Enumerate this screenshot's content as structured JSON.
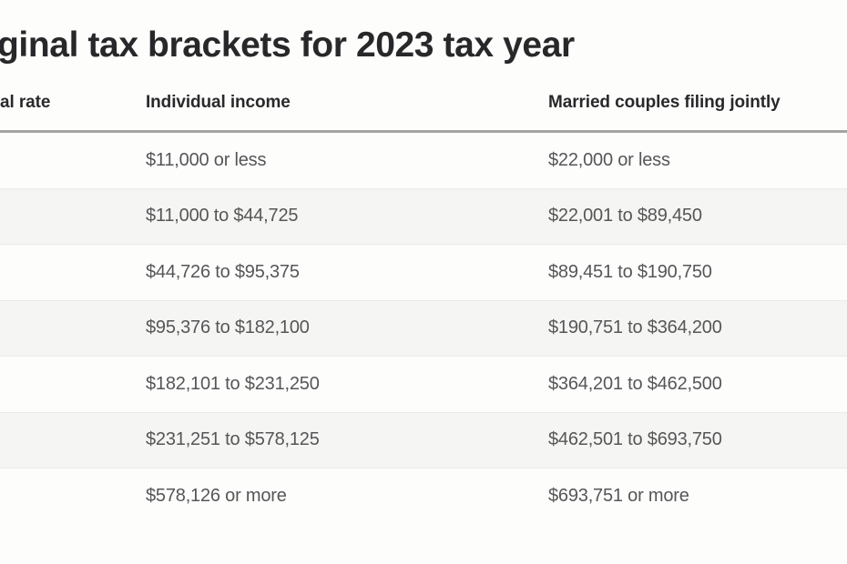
{
  "title": "ginal tax brackets for 2023 tax year",
  "table": {
    "columns": [
      {
        "label": "al rate"
      },
      {
        "label": "Individual income"
      },
      {
        "label": "Married couples filing jointly"
      }
    ],
    "rows": [
      {
        "rate": "",
        "individual": "$11,000 or less",
        "married": "$22,000 or less"
      },
      {
        "rate": "",
        "individual": "$11,000 to $44,725",
        "married": "$22,001 to $89,450"
      },
      {
        "rate": "",
        "individual": "$44,726 to $95,375",
        "married": "$89,451 to $190,750"
      },
      {
        "rate": "",
        "individual": "$95,376 to $182,100",
        "married": "$190,751 to $364,200"
      },
      {
        "rate": "",
        "individual": "$182,101 to $231,250",
        "married": "$364,201 to $462,500"
      },
      {
        "rate": "",
        "individual": "$231,251 to $578,125",
        "married": "$462,501 to $693,750"
      },
      {
        "rate": "",
        "individual": "$578,126 or more",
        "married": "$693,751 or more"
      }
    ]
  },
  "chart_data": {
    "type": "table",
    "title": "ginal tax brackets for 2023 tax year",
    "columns": [
      "al rate",
      "Individual income",
      "Married couples filing jointly"
    ],
    "rows": [
      [
        "",
        "$11,000 or less",
        "$22,000 or less"
      ],
      [
        "",
        "$11,000 to $44,725",
        "$22,001 to $89,450"
      ],
      [
        "",
        "$44,726 to $95,375",
        "$89,451 to $190,750"
      ],
      [
        "",
        "$95,376 to $182,100",
        "$190,751 to $364,200"
      ],
      [
        "",
        "$182,101 to $231,250",
        "$364,201 to $462,500"
      ],
      [
        "",
        "$231,251 to $578,125",
        "$462,501 to $693,750"
      ],
      [
        "",
        "$578,126 or more",
        "$693,751 or more"
      ]
    ],
    "layout": "left edge of graphic is cropped; rate column values not visible; rows alternate white and light-gray stripes"
  },
  "colors": {
    "page_bg": "#fdfdfc",
    "alt_row_bg": "#f5f5f3",
    "header_rule": "#a4a4a2",
    "row_rule": "#eaeae8",
    "title_text": "#28282a",
    "header_text": "#29292b",
    "cell_text": "#565658"
  }
}
